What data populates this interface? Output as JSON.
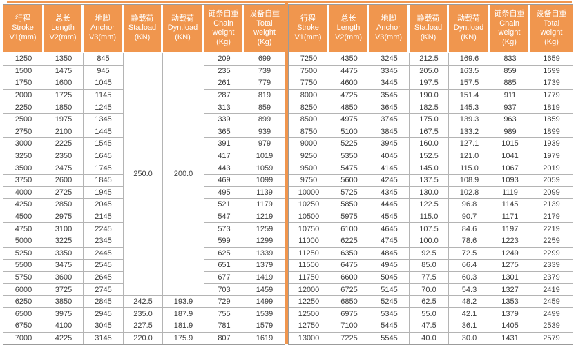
{
  "colors": {
    "header_orange": "#F0964E",
    "header_text": "#FFFFFF",
    "cell_text": "#3C3C3C",
    "grid_line": "#B4B4B4",
    "outer_border": "#9B9B9B"
  },
  "header_columns": [
    {
      "key": "stroke",
      "lines": [
        "行程",
        "Stroke",
        "V1(mm)"
      ]
    },
    {
      "key": "length",
      "lines": [
        "总长",
        "Length",
        "V2(mm)"
      ]
    },
    {
      "key": "anchor",
      "lines": [
        "地脚",
        "Anchor",
        "V3(mm)"
      ]
    },
    {
      "key": "sta-load",
      "lines": [
        "静载荷",
        "Sta.load",
        "(KN)"
      ]
    },
    {
      "key": "dyn-load",
      "lines": [
        "动载荷",
        "Dyn.load",
        "(KN)"
      ]
    },
    {
      "key": "chain-weight",
      "lines": [
        "链条自重",
        "Chain",
        "weight",
        "(Kg)"
      ]
    },
    {
      "key": "total-weight",
      "lines": [
        "设备自重",
        "Total",
        "weight",
        "(Kg)"
      ]
    }
  ],
  "left_table": {
    "merged": {
      "sta_load": "250.0",
      "dyn_load": "200.0",
      "span_rows": 20
    },
    "rows": [
      [
        "1250",
        "1350",
        "845",
        "",
        "",
        "209",
        "699"
      ],
      [
        "1500",
        "1475",
        "945",
        "",
        "",
        "235",
        "739"
      ],
      [
        "1750",
        "1600",
        "1045",
        "",
        "",
        "261",
        "779"
      ],
      [
        "2000",
        "1725",
        "1145",
        "",
        "",
        "287",
        "819"
      ],
      [
        "2250",
        "1850",
        "1245",
        "",
        "",
        "313",
        "859"
      ],
      [
        "2500",
        "1975",
        "1345",
        "",
        "",
        "339",
        "899"
      ],
      [
        "2750",
        "2100",
        "1445",
        "",
        "",
        "365",
        "939"
      ],
      [
        "3000",
        "2225",
        "1545",
        "",
        "",
        "391",
        "979"
      ],
      [
        "3250",
        "2350",
        "1645",
        "",
        "",
        "417",
        "1019"
      ],
      [
        "3500",
        "2475",
        "1745",
        "",
        "",
        "443",
        "1059"
      ],
      [
        "3750",
        "2600",
        "1845",
        "",
        "",
        "469",
        "1099"
      ],
      [
        "4000",
        "2725",
        "1945",
        "",
        "",
        "495",
        "1139"
      ],
      [
        "4250",
        "2850",
        "2045",
        "",
        "",
        "521",
        "1179"
      ],
      [
        "4500",
        "2975",
        "2145",
        "",
        "",
        "547",
        "1219"
      ],
      [
        "4750",
        "3100",
        "2245",
        "",
        "",
        "573",
        "1259"
      ],
      [
        "5000",
        "3225",
        "2345",
        "",
        "",
        "599",
        "1299"
      ],
      [
        "5250",
        "3350",
        "2445",
        "",
        "",
        "625",
        "1339"
      ],
      [
        "5500",
        "3475",
        "2545",
        "",
        "",
        "651",
        "1379"
      ],
      [
        "5750",
        "3600",
        "2645",
        "",
        "",
        "677",
        "1419"
      ],
      [
        "6000",
        "3725",
        "2745",
        "",
        "",
        "703",
        "1459"
      ],
      [
        "6250",
        "3850",
        "2845",
        "242.5",
        "193.9",
        "729",
        "1499"
      ],
      [
        "6500",
        "3975",
        "2945",
        "235.0",
        "187.9",
        "755",
        "1539"
      ],
      [
        "6750",
        "4100",
        "3045",
        "227.5",
        "181.9",
        "781",
        "1579"
      ],
      [
        "7000",
        "4225",
        "3145",
        "220.0",
        "175.9",
        "807",
        "1619"
      ]
    ]
  },
  "right_table": {
    "rows": [
      [
        "7250",
        "4350",
        "3245",
        "212.5",
        "169.6",
        "833",
        "1659"
      ],
      [
        "7500",
        "4475",
        "3345",
        "205.0",
        "163.5",
        "859",
        "1699"
      ],
      [
        "7750",
        "4600",
        "3445",
        "197.5",
        "157.5",
        "885",
        "1739"
      ],
      [
        "8000",
        "4725",
        "3545",
        "190.0",
        "151.4",
        "911",
        "1779"
      ],
      [
        "8250",
        "4850",
        "3645",
        "182.5",
        "145.3",
        "937",
        "1819"
      ],
      [
        "8500",
        "4975",
        "3745",
        "175.0",
        "139.3",
        "963",
        "1859"
      ],
      [
        "8750",
        "5100",
        "3845",
        "167.5",
        "133.2",
        "989",
        "1899"
      ],
      [
        "9000",
        "5225",
        "3945",
        "160.0",
        "127.1",
        "1015",
        "1939"
      ],
      [
        "9250",
        "5350",
        "4045",
        "152.5",
        "121.0",
        "1041",
        "1979"
      ],
      [
        "9500",
        "5475",
        "4145",
        "145.0",
        "115.0",
        "1067",
        "2019"
      ],
      [
        "9750",
        "5600",
        "4245",
        "137.5",
        "108.9",
        "1093",
        "2059"
      ],
      [
        "10000",
        "5725",
        "4345",
        "130.0",
        "102.8",
        "1119",
        "2099"
      ],
      [
        "10250",
        "5850",
        "4445",
        "122.5",
        "96.8",
        "1145",
        "2139"
      ],
      [
        "10500",
        "5975",
        "4545",
        "115.0",
        "90.7",
        "1171",
        "2179"
      ],
      [
        "10750",
        "6100",
        "4645",
        "107.5",
        "84.6",
        "1197",
        "2219"
      ],
      [
        "11000",
        "6225",
        "4745",
        "100.0",
        "78.6",
        "1223",
        "2259"
      ],
      [
        "11250",
        "6350",
        "4845",
        "92.5",
        "72.5",
        "1249",
        "2299"
      ],
      [
        "11500",
        "6475",
        "4945",
        "85.0",
        "66.4",
        "1275",
        "2339"
      ],
      [
        "11750",
        "6600",
        "5045",
        "77.5",
        "60.3",
        "1301",
        "2379"
      ],
      [
        "12000",
        "6725",
        "5145",
        "70.0",
        "54.3",
        "1327",
        "2419"
      ],
      [
        "12250",
        "6850",
        "5245",
        "62.5",
        "48.2",
        "1353",
        "2459"
      ],
      [
        "12500",
        "6975",
        "5345",
        "55.0",
        "42.1",
        "1379",
        "2499"
      ],
      [
        "12750",
        "7100",
        "5445",
        "47.5",
        "36.1",
        "1405",
        "2539"
      ],
      [
        "13000",
        "7225",
        "5545",
        "40.0",
        "30.0",
        "1431",
        "2579"
      ]
    ]
  }
}
